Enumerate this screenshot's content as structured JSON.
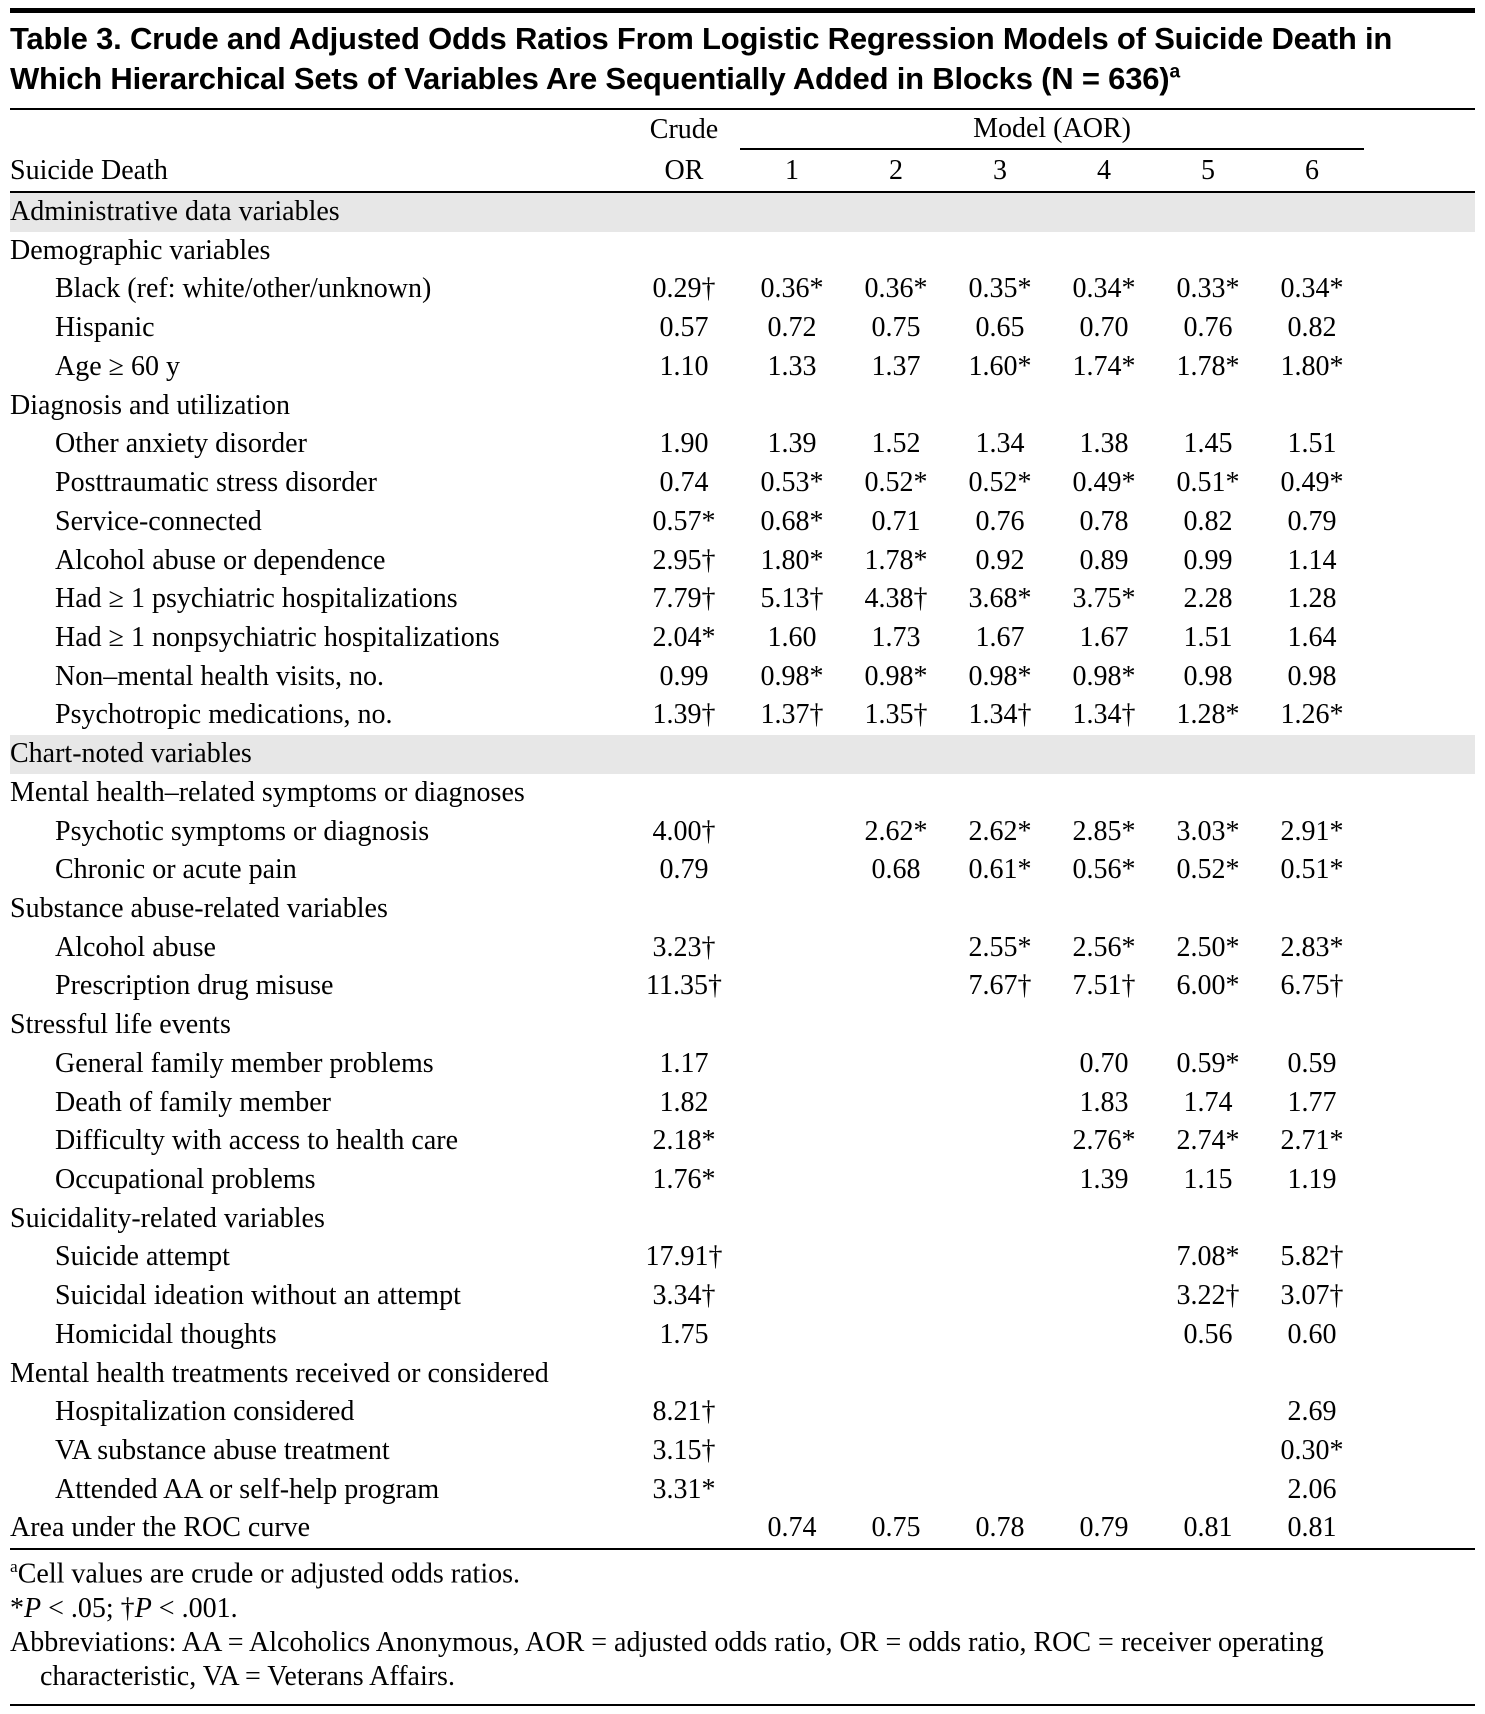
{
  "title": "Table 3. Crude and Adjusted Odds Ratios From Logistic Regression Models of Suicide Death in Which Hierarchical Sets of Variables Are Sequentially Added in Blocks (N = 636)",
  "title_sup": "a",
  "header": {
    "row_label": "Suicide Death",
    "crude_line1": "Crude",
    "crude_line2": "OR",
    "model_group": "Model (AOR)",
    "model_columns": [
      "1",
      "2",
      "3",
      "4",
      "5",
      "6"
    ]
  },
  "rows": [
    {
      "type": "section",
      "label": "Administrative data variables"
    },
    {
      "type": "subsection",
      "label": "Demographic variables"
    },
    {
      "type": "data",
      "label": "Black (ref: white/other/unknown)",
      "values": [
        "0.29†",
        "0.36*",
        "0.36*",
        "0.35*",
        "0.34*",
        "0.33*",
        "0.34*"
      ]
    },
    {
      "type": "data",
      "label": "Hispanic",
      "values": [
        "0.57",
        "0.72",
        "0.75",
        "0.65",
        "0.70",
        "0.76",
        "0.82"
      ]
    },
    {
      "type": "data",
      "label": "Age ≥ 60 y",
      "values": [
        "1.10",
        "1.33",
        "1.37",
        "1.60*",
        "1.74*",
        "1.78*",
        "1.80*"
      ]
    },
    {
      "type": "subsection",
      "label": "Diagnosis and utilization"
    },
    {
      "type": "data",
      "label": "Other anxiety disorder",
      "values": [
        "1.90",
        "1.39",
        "1.52",
        "1.34",
        "1.38",
        "1.45",
        "1.51"
      ]
    },
    {
      "type": "data",
      "label": "Posttraumatic stress disorder",
      "values": [
        "0.74",
        "0.53*",
        "0.52*",
        "0.52*",
        "0.49*",
        "0.51*",
        "0.49*"
      ]
    },
    {
      "type": "data",
      "label": "Service-connected",
      "values": [
        "0.57*",
        "0.68*",
        "0.71",
        "0.76",
        "0.78",
        "0.82",
        "0.79"
      ]
    },
    {
      "type": "data",
      "label": "Alcohol abuse or dependence",
      "values": [
        "2.95†",
        "1.80*",
        "1.78*",
        "0.92",
        "0.89",
        "0.99",
        "1.14"
      ]
    },
    {
      "type": "data",
      "label": "Had ≥ 1 psychiatric hospitalizations",
      "values": [
        "7.79†",
        "5.13†",
        "4.38†",
        "3.68*",
        "3.75*",
        "2.28",
        "1.28"
      ]
    },
    {
      "type": "data",
      "label": "Had ≥ 1 nonpsychiatric hospitalizations",
      "values": [
        "2.04*",
        "1.60",
        "1.73",
        "1.67",
        "1.67",
        "1.51",
        "1.64"
      ]
    },
    {
      "type": "data",
      "label": "Non–mental health visits, no.",
      "values": [
        "0.99",
        "0.98*",
        "0.98*",
        "0.98*",
        "0.98*",
        "0.98",
        "0.98"
      ]
    },
    {
      "type": "data",
      "label": "Psychotropic medications, no.",
      "values": [
        "1.39†",
        "1.37†",
        "1.35†",
        "1.34†",
        "1.34†",
        "1.28*",
        "1.26*"
      ]
    },
    {
      "type": "section",
      "label": "Chart-noted variables"
    },
    {
      "type": "subsection",
      "label": "Mental health–related symptoms or diagnoses"
    },
    {
      "type": "data",
      "label": "Psychotic symptoms or diagnosis",
      "values": [
        "4.00†",
        "",
        "2.62*",
        "2.62*",
        "2.85*",
        "3.03*",
        "2.91*"
      ]
    },
    {
      "type": "data",
      "label": "Chronic or acute pain",
      "values": [
        "0.79",
        "",
        "0.68",
        "0.61*",
        "0.56*",
        "0.52*",
        "0.51*"
      ]
    },
    {
      "type": "subsection",
      "label": "Substance abuse-related variables"
    },
    {
      "type": "data",
      "label": "Alcohol abuse",
      "values": [
        "3.23†",
        "",
        "",
        "2.55*",
        "2.56*",
        "2.50*",
        "2.83*"
      ]
    },
    {
      "type": "data",
      "label": "Prescription drug misuse",
      "values": [
        "11.35†",
        "",
        "",
        "7.67†",
        "7.51†",
        "6.00*",
        "6.75†"
      ]
    },
    {
      "type": "subsection",
      "label": "Stressful life events"
    },
    {
      "type": "data",
      "label": "General family member problems",
      "values": [
        "1.17",
        "",
        "",
        "",
        "0.70",
        "0.59*",
        "0.59"
      ]
    },
    {
      "type": "data",
      "label": "Death of family member",
      "values": [
        "1.82",
        "",
        "",
        "",
        "1.83",
        "1.74",
        "1.77"
      ]
    },
    {
      "type": "data",
      "label": "Difficulty with access to health care",
      "values": [
        "2.18*",
        "",
        "",
        "",
        "2.76*",
        "2.74*",
        "2.71*"
      ]
    },
    {
      "type": "data",
      "label": "Occupational problems",
      "values": [
        "1.76*",
        "",
        "",
        "",
        "1.39",
        "1.15",
        "1.19"
      ]
    },
    {
      "type": "subsection",
      "label": "Suicidality-related variables"
    },
    {
      "type": "data",
      "label": "Suicide attempt",
      "values": [
        "17.91†",
        "",
        "",
        "",
        "",
        "7.08*",
        "5.82†"
      ]
    },
    {
      "type": "data",
      "label": "Suicidal ideation without an attempt",
      "values": [
        "3.34†",
        "",
        "",
        "",
        "",
        "3.22†",
        "3.07†"
      ]
    },
    {
      "type": "data",
      "label": "Homicidal thoughts",
      "values": [
        "1.75",
        "",
        "",
        "",
        "",
        "0.56",
        "0.60"
      ]
    },
    {
      "type": "subsection",
      "label": "Mental health treatments received or considered"
    },
    {
      "type": "data",
      "label": "Hospitalization considered",
      "values": [
        "8.21†",
        "",
        "",
        "",
        "",
        "",
        "2.69"
      ]
    },
    {
      "type": "data",
      "label": "VA substance abuse treatment",
      "values": [
        "3.15†",
        "",
        "",
        "",
        "",
        "",
        "0.30*"
      ]
    },
    {
      "type": "data",
      "label": "Attended AA or self-help program",
      "values": [
        "3.31*",
        "",
        "",
        "",
        "",
        "",
        "2.06"
      ]
    },
    {
      "type": "data",
      "indent": false,
      "label": "Area under the ROC curve",
      "values": [
        "",
        "0.74",
        "0.75",
        "0.78",
        "0.79",
        "0.81",
        "0.81"
      ]
    }
  ],
  "footnotes": [
    {
      "sup": "a",
      "segments": [
        {
          "text": "Cell values are crude or adjusted odds ratios."
        }
      ]
    },
    {
      "sup": "",
      "segments": [
        {
          "text": "*"
        },
        {
          "text": "P",
          "italic": true
        },
        {
          "text": " < .05; †"
        },
        {
          "text": "P",
          "italic": true
        },
        {
          "text": " < .001."
        }
      ]
    },
    {
      "sup": "",
      "segments": [
        {
          "text": "Abbreviations: AA = Alcoholics Anonymous, AOR = adjusted odds ratio, OR = odds ratio, ROC = receiver operating characteristic, VA = Veterans Affairs."
        }
      ]
    }
  ]
}
